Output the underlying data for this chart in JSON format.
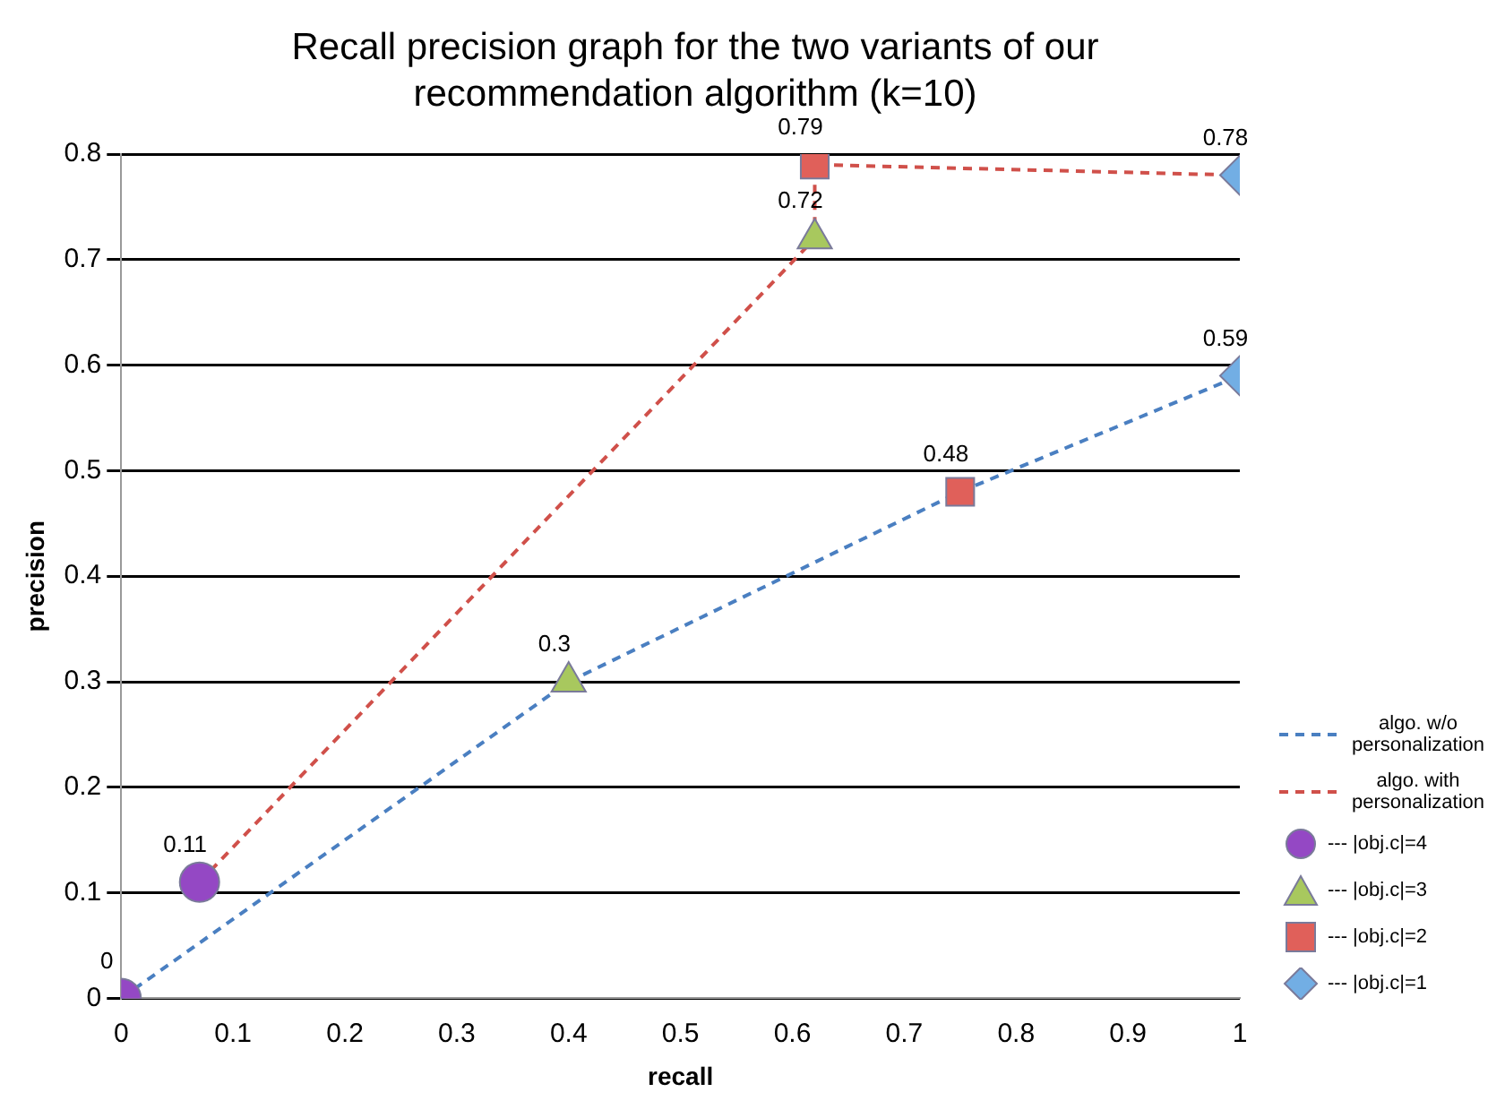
{
  "chart_data": {
    "type": "line",
    "title": "Recall precision graph for the two variants of our recommendation algorithm (k=10)",
    "xlabel": "recall",
    "ylabel": "precision",
    "xlim": [
      0,
      1
    ],
    "xticks": [
      0,
      0.1,
      0.2,
      0.3,
      0.4,
      0.5,
      0.6,
      0.7,
      0.8,
      0.9,
      1
    ],
    "ylim": [
      0,
      0.8
    ],
    "yticks": [
      0,
      0.1,
      0.2,
      0.3,
      0.4,
      0.5,
      0.6,
      0.7,
      0.8
    ],
    "grid": "y",
    "legend": "right",
    "line_style": "dashed",
    "series": [
      {
        "name": "algo. w/o personalization",
        "marker": "none",
        "color": "#4a7fc1",
        "x": [
          0,
          0.4,
          0.75,
          1
        ],
        "values": [
          0,
          0.3,
          0.48,
          0.59
        ],
        "value_labels": [
          "0",
          "0.3",
          "0.48",
          "0.59"
        ]
      },
      {
        "name": "algo. with personalization",
        "marker": "none",
        "color": "#d0504a",
        "x": [
          0.07,
          0.62,
          0.62,
          1
        ],
        "values": [
          0.11,
          0.72,
          0.79,
          0.78
        ],
        "value_labels": [
          "0.11",
          "0.72",
          "0.79",
          "0.78"
        ]
      },
      {
        "name": "--- |obj.c|=4",
        "type": "scatter",
        "marker": "circle",
        "color": "#9448c4",
        "x": [
          0,
          0.07
        ],
        "values": [
          0,
          0.11
        ]
      },
      {
        "name": "--- |obj.c|=3",
        "type": "scatter",
        "marker": "triangle",
        "color": "#a8c85e",
        "x": [
          0.4,
          0.62
        ],
        "values": [
          0.3,
          0.72
        ]
      },
      {
        "name": "--- |obj.c|=2",
        "type": "scatter",
        "marker": "square",
        "color": "#e0605a",
        "x": [
          0.75,
          0.62
        ],
        "values": [
          0.48,
          0.79
        ]
      },
      {
        "name": "--- |obj.c|=1",
        "type": "scatter",
        "marker": "diamond",
        "color": "#72aee4",
        "x": [
          1,
          1
        ],
        "values": [
          0.59,
          0.78
        ]
      }
    ]
  }
}
